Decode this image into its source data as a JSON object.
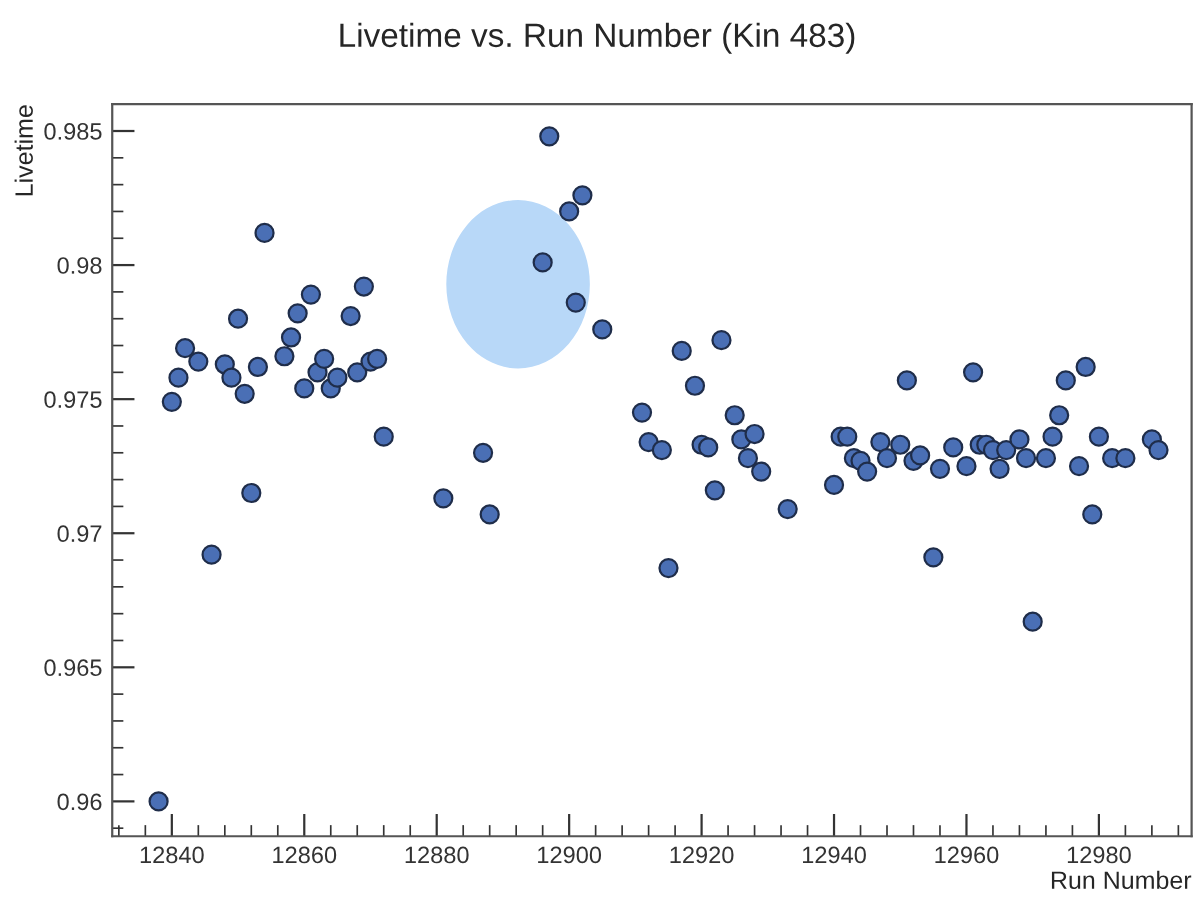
{
  "chart_data": {
    "type": "scatter",
    "title": "Livetime vs. Run Number (Kin 483)",
    "xlabel": "Run Number",
    "ylabel": "Livetime",
    "xlim": [
      12831,
      12994
    ],
    "ylim": [
      0.9587,
      0.986
    ],
    "xticks": [
      12840,
      12860,
      12880,
      12900,
      12920,
      12940,
      12960,
      12980
    ],
    "yticks": [
      0.96,
      0.965,
      0.97,
      0.975,
      0.98,
      0.985
    ],
    "marker": "circle",
    "grid": false,
    "legend": false,
    "series": [
      {
        "color": "#4a6fb5",
        "x": [
          12838,
          12840,
          12841,
          12842,
          12844,
          12846,
          12848,
          12849,
          12850,
          12851,
          12852,
          12853,
          12854,
          12857,
          12858,
          12859,
          12860,
          12861,
          12862,
          12863,
          12864,
          12865,
          12867,
          12868,
          12869,
          12870,
          12871,
          12872,
          12881,
          12887,
          12888,
          12896,
          12897,
          12900,
          12901,
          12902,
          12905,
          12911,
          12912,
          12914,
          12915,
          12917,
          12919,
          12920,
          12921,
          12922,
          12923,
          12925,
          12926,
          12927,
          12928,
          12929,
          12933,
          12940,
          12941,
          12942,
          12943,
          12944,
          12945,
          12947,
          12948,
          12950,
          12951,
          12952,
          12953,
          12955,
          12956,
          12958,
          12960,
          12961,
          12962,
          12963,
          12964,
          12965,
          12966,
          12968,
          12969,
          12970,
          12972,
          12973,
          12974,
          12975,
          12977,
          12978,
          12979,
          12980,
          12982,
          12984,
          12988,
          12989
        ],
        "values": [
          0.96,
          0.9749,
          0.9758,
          0.9769,
          0.9764,
          0.9692,
          0.9763,
          0.9758,
          0.978,
          0.9752,
          0.9715,
          0.9762,
          0.9812,
          0.9766,
          0.9773,
          0.9782,
          0.9754,
          0.9789,
          0.976,
          0.9765,
          0.9754,
          0.9758,
          0.9781,
          0.976,
          0.9792,
          0.9764,
          0.9765,
          0.9736,
          0.9713,
          0.973,
          0.9707,
          0.9801,
          0.9848,
          0.982,
          0.9786,
          0.9826,
          0.9776,
          0.9745,
          0.9734,
          0.9731,
          0.9687,
          0.9768,
          0.9755,
          0.9733,
          0.9732,
          0.9716,
          0.9772,
          0.9744,
          0.9735,
          0.9728,
          0.9737,
          0.9723,
          0.9709,
          0.9718,
          0.9736,
          0.9736,
          0.9728,
          0.9727,
          0.9723,
          0.9734,
          0.9728,
          0.9733,
          0.9757,
          0.9727,
          0.9729,
          0.9691,
          0.9724,
          0.9732,
          0.9725,
          0.976,
          0.9733,
          0.9733,
          0.9731,
          0.9724,
          0.9731,
          0.9735,
          0.9728,
          0.9667,
          0.9728,
          0.9736,
          0.9744,
          0.9757,
          0.9725,
          0.9762,
          0.9707,
          0.9736,
          0.9728,
          0.9728,
          0.9735,
          0.9731
        ]
      }
    ]
  }
}
